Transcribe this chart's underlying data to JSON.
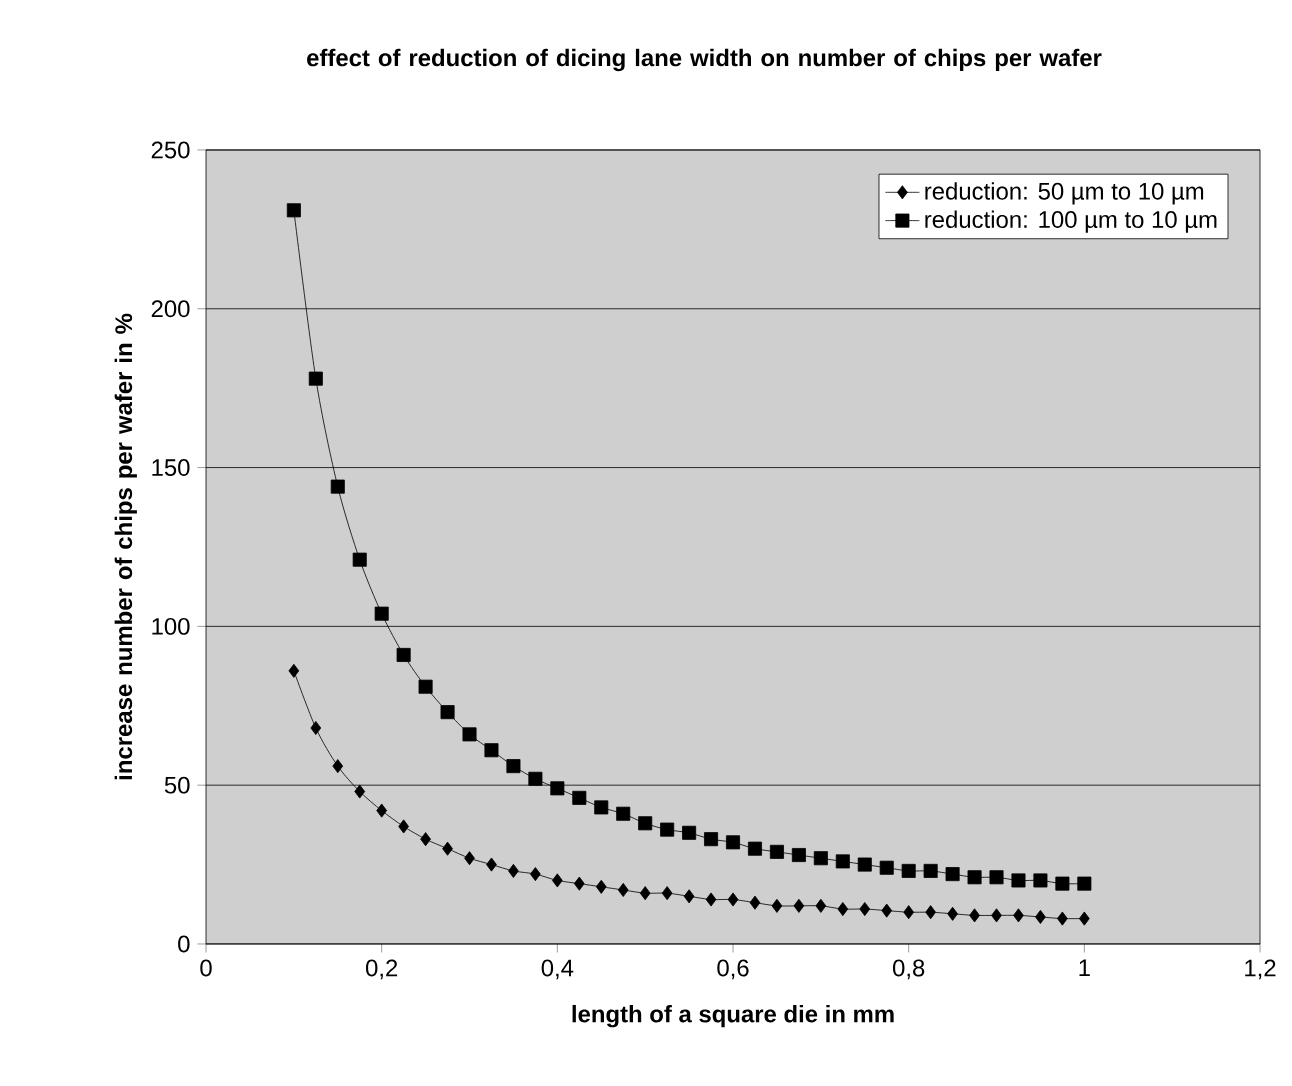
{
  "chart_data": {
    "type": "line",
    "title": "effect of reduction of dicing lane width on number of chips per wafer",
    "xlabel": "length of a square die in mm",
    "ylabel": "increase number of chips per wafer in %",
    "x": [
      0.1,
      0.125,
      0.15,
      0.175,
      0.2,
      0.225,
      0.25,
      0.275,
      0.3,
      0.325,
      0.35,
      0.375,
      0.4,
      0.425,
      0.45,
      0.475,
      0.5,
      0.525,
      0.55,
      0.575,
      0.6,
      0.625,
      0.65,
      0.675,
      0.7,
      0.725,
      0.75,
      0.775,
      0.8,
      0.825,
      0.85,
      0.875,
      0.9,
      0.925,
      0.95,
      0.975,
      1.0
    ],
    "series": [
      {
        "name": "reduction: 50 µm to 10 µm",
        "color": "#000000",
        "marker": "diamond",
        "values": [
          86,
          68,
          56,
          48,
          42,
          37,
          33,
          30,
          27,
          25,
          23,
          22,
          20,
          19,
          18,
          17,
          16,
          16,
          15,
          14,
          14,
          13,
          12,
          12,
          12,
          11,
          11,
          10.5,
          10,
          10,
          9.5,
          9,
          9,
          9,
          8.5,
          8,
          8
        ]
      },
      {
        "name": "reduction: 100 µm to 10 µm",
        "color": "#000000",
        "marker": "square",
        "values": [
          231,
          178,
          144,
          121,
          104,
          91,
          81,
          73,
          66,
          61,
          56,
          52,
          49,
          46,
          43,
          41,
          38,
          36,
          35,
          33,
          32,
          30,
          29,
          28,
          27,
          26,
          25,
          24,
          23,
          23,
          22,
          21,
          21,
          20,
          20,
          19,
          19
        ]
      }
    ],
    "xlim": [
      0,
      1.2
    ],
    "xticks": [
      0,
      {
        "value": 0.2,
        "label": "0,2"
      },
      {
        "value": 0.4,
        "label": "0,4"
      },
      {
        "value": 0.6,
        "label": "0,6"
      },
      {
        "value": 0.8,
        "label": "0,8"
      },
      {
        "value": 1,
        "label": "1"
      },
      {
        "value": 1.2,
        "label": "1,2"
      }
    ],
    "ylim": [
      0,
      250
    ],
    "yticks": [
      0,
      50,
      100,
      150,
      200,
      250
    ],
    "grid": "y",
    "legend": "top right",
    "line_style": "solid"
  }
}
